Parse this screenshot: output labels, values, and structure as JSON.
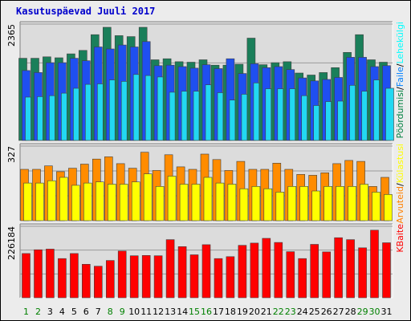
{
  "title": "Kasutuspäevad Juuli 2017",
  "chart_data": [
    {
      "type": "bar",
      "panel": "top",
      "ytick": "2365",
      "legend": [
        "Pöördumisi",
        "Faile",
        "Lehekülgi"
      ],
      "legend_colors": [
        "#008040",
        "#0080ff",
        "#00ffff"
      ],
      "colors": [
        "#1a7f5a",
        "#1f4ff0",
        "#22d8f2"
      ],
      "categories": [
        "1",
        "2",
        "3",
        "4",
        "5",
        "6",
        "7",
        "8",
        "9",
        "10",
        "11",
        "12",
        "13",
        "14",
        "15",
        "16",
        "17",
        "18",
        "19",
        "20",
        "21",
        "22",
        "23",
        "24",
        "25",
        "26",
        "27",
        "28",
        "29",
        "30",
        "31"
      ],
      "ylim": [
        0,
        2365
      ],
      "series": [
        {
          "name": "Pöördumisi",
          "values": [
            1670,
            1670,
            1700,
            1680,
            1760,
            1830,
            2150,
            2300,
            2130,
            2110,
            2300,
            1640,
            1660,
            1600,
            1590,
            1640,
            1530,
            1530,
            1550,
            2080,
            1540,
            1580,
            1600,
            1370,
            1330,
            1380,
            1480,
            1790,
            2150,
            1640,
            1590
          ]
        },
        {
          "name": "Faile",
          "values": [
            1420,
            1380,
            1580,
            1580,
            1670,
            1620,
            1900,
            1860,
            1940,
            1900,
            2010,
            1520,
            1530,
            1500,
            1470,
            1540,
            1460,
            1660,
            1360,
            1560,
            1480,
            1500,
            1440,
            1270,
            1210,
            1240,
            1280,
            1690,
            1690,
            1500,
            1520
          ]
        },
        {
          "name": "Lehekülgi",
          "values": [
            880,
            890,
            910,
            960,
            1060,
            1140,
            1150,
            1230,
            1200,
            1340,
            1320,
            1290,
            980,
            1000,
            1000,
            1130,
            970,
            820,
            940,
            1170,
            1050,
            1050,
            1050,
            910,
            710,
            790,
            800,
            1120,
            1000,
            1230,
            1060
          ]
        }
      ]
    },
    {
      "type": "bar",
      "panel": "middle",
      "ytick": "327",
      "legend": [
        "Arvuteid",
        "Külastusi"
      ],
      "legend_colors": [
        "#ff8000",
        "#ffff00"
      ],
      "colors": [
        "#ff8c00",
        "#ffff00"
      ],
      "categories": [
        "1",
        "2",
        "3",
        "4",
        "5",
        "6",
        "7",
        "8",
        "9",
        "10",
        "11",
        "12",
        "13",
        "14",
        "15",
        "16",
        "17",
        "18",
        "19",
        "20",
        "21",
        "22",
        "23",
        "24",
        "25",
        "26",
        "27",
        "28",
        "29",
        "30",
        "31"
      ],
      "ylim": [
        0,
        327
      ],
      "series": [
        {
          "name": "Külastusi",
          "values": [
            225,
            225,
            240,
            215,
            230,
            248,
            270,
            280,
            250,
            230,
            300,
            220,
            289,
            236,
            225,
            292,
            268,
            220,
            260,
            225,
            225,
            252,
            225,
            203,
            199,
            210,
            250,
            264,
            260,
            150,
            190
          ]
        },
        {
          "name": "Arvuteid",
          "values": [
            165,
            165,
            175,
            190,
            155,
            165,
            170,
            160,
            160,
            170,
            205,
            150,
            195,
            160,
            160,
            190,
            165,
            160,
            140,
            150,
            140,
            125,
            150,
            150,
            130,
            150,
            150,
            150,
            160,
            125,
            115
          ]
        }
      ]
    },
    {
      "type": "bar",
      "panel": "bottom",
      "ytick": "226184",
      "legend": [
        "KBaite"
      ],
      "legend_colors": [
        "#ff0000"
      ],
      "colors": [
        "#ff0000"
      ],
      "categories": [
        "1",
        "2",
        "3",
        "4",
        "5",
        "6",
        "7",
        "8",
        "9",
        "10",
        "11",
        "12",
        "13",
        "14",
        "15",
        "16",
        "17",
        "18",
        "19",
        "20",
        "21",
        "22",
        "23",
        "24",
        "25",
        "26",
        "27",
        "28",
        "29",
        "30",
        "31"
      ],
      "ylim": [
        0,
        226184
      ],
      "series": [
        {
          "name": "KBaite",
          "values": [
            140000,
            152000,
            154000,
            124000,
            140000,
            106000,
            100000,
            118000,
            148000,
            133000,
            134000,
            133000,
            184000,
            162000,
            136000,
            168000,
            124000,
            130000,
            166000,
            173000,
            188000,
            175000,
            146000,
            124000,
            169000,
            145000,
            190000,
            184000,
            158000,
            214000,
            174000
          ]
        }
      ]
    }
  ],
  "weekend_days": [
    "1",
    "2",
    "8",
    "9",
    "15",
    "16",
    "22",
    "23",
    "29",
    "30"
  ],
  "weekend_color": "#008000",
  "weekday_color": "#000000"
}
